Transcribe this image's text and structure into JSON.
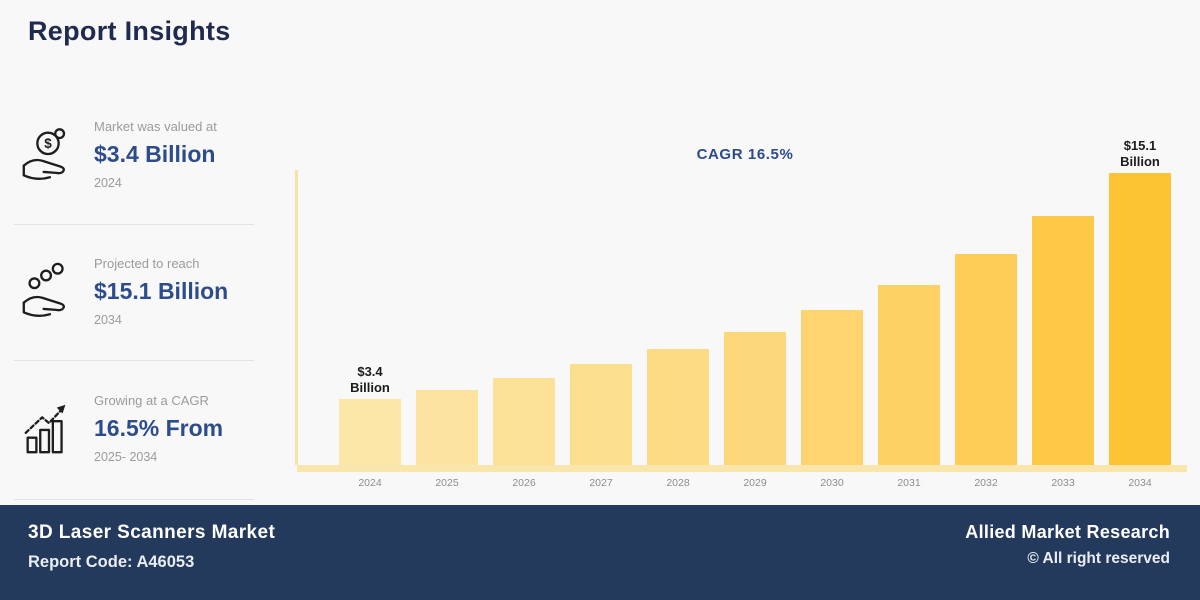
{
  "title": "Report Insights",
  "sidebar": {
    "items": [
      {
        "icon": "money-in-hand-icon",
        "label": "Market was valued at",
        "value": "$3.4 Billion",
        "period": "2024"
      },
      {
        "icon": "investment-growth-icon",
        "label": "Projected to reach",
        "value": "$15.1 Billion",
        "period": "2034"
      },
      {
        "icon": "growth-chart-icon",
        "label": "Growing at a CAGR",
        "value": "16.5% From",
        "period": "2025- 2034"
      }
    ]
  },
  "chart_data": {
    "type": "bar",
    "title": "CAGR 16.5%",
    "unit": "USD Billion",
    "categories": [
      "2024",
      "2025",
      "2026",
      "2027",
      "2028",
      "2029",
      "2030",
      "2031",
      "2032",
      "2033",
      "2034"
    ],
    "values": [
      3.4,
      3.9,
      4.5,
      5.2,
      6.0,
      6.9,
      8.0,
      9.3,
      10.9,
      12.9,
      15.1
    ],
    "ylim": [
      0,
      15.1
    ],
    "grid": false,
    "legend": "none",
    "bar_colors": [
      "#FCE7A8",
      "#FCE4A0",
      "#FCE198",
      "#FCDE8F",
      "#FDDB85",
      "#FDD87B",
      "#FDD470",
      "#FDD164",
      "#FDCD57",
      "#FDC947",
      "#FCC433"
    ],
    "bar_end_labels": {
      "first": [
        "$3.4",
        "Billion"
      ],
      "last": [
        "$15.1",
        "Billion"
      ]
    },
    "axis_color": "#F8E3A2",
    "baseline_color": "#F9E6AC"
  },
  "footer": {
    "market_name": "3D Laser Scanners Market",
    "report_code": "Report Code: A46053",
    "company": "Allied Market Research",
    "copyright": "© All right reserved"
  },
  "colors": {
    "background": "#F8F8F9",
    "title_navy": "#1F2A4E",
    "value_blue": "#2C4C8C",
    "muted_gray": "#9B9B9B",
    "footer_navy": "#233A5C",
    "cagr_label_blue": "#2B4A8C"
  }
}
